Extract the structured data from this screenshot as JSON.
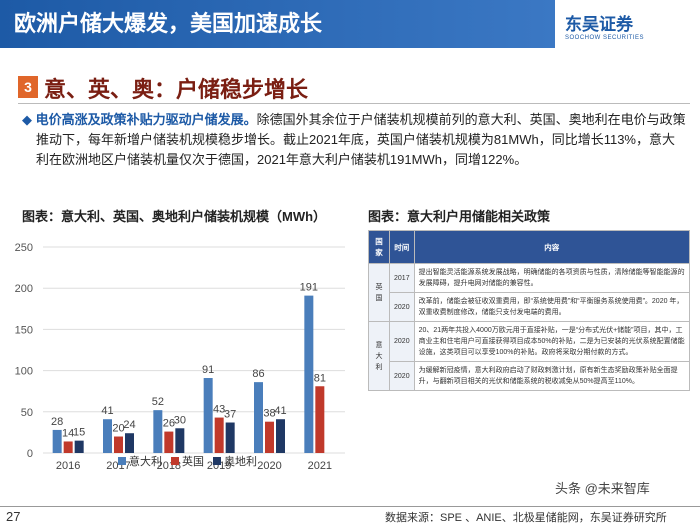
{
  "header": {
    "title": "欧洲户储大爆发，美国加速成长",
    "logo_cn": "东吴证券",
    "logo_en": "SOOCHOW SECURITIES"
  },
  "section": {
    "number": "3",
    "title": "意、英、奥：户储稳步增长"
  },
  "paragraph": {
    "bold": "电价高涨及政策补贴力驱动户储发展。",
    "text": "除德国外其余位于户储装机规模前列的意大利、英国、奥地利在电价与政策推动下，每年新增户储装机规模稳步增长。截止2021年底，英国户储装机规模为81MWh，同比增长113%，意大利在欧洲地区户储装机量仅次于德国，2021年意大利户储装机191MWh，同增122%。"
  },
  "chart_data": {
    "type": "bar",
    "title": "图表：意大利、英国、奥地利户储装机规模（MWh）",
    "categories": [
      "2016",
      "2017",
      "2018",
      "2019",
      "2020",
      "2021"
    ],
    "series": [
      {
        "name": "意大利",
        "color": "#4a7ebb",
        "values": [
          28,
          41,
          52,
          91,
          86,
          191
        ]
      },
      {
        "name": "英国",
        "color": "#c0392b",
        "values": [
          14,
          20,
          26,
          43,
          38,
          81
        ]
      },
      {
        "name": "奥地利",
        "color": "#1f3864",
        "values": [
          15,
          24,
          30,
          37,
          41,
          null
        ]
      }
    ],
    "ylim": [
      0,
      250
    ],
    "yticks": [
      0,
      50,
      100,
      150,
      200,
      250
    ],
    "grid": true,
    "legend": "bottom"
  },
  "table": {
    "title": "图表：意大利户用储能相关政策",
    "headers": [
      "国家",
      "时间",
      "内容"
    ],
    "groups": [
      {
        "country": "英国",
        "rows": [
          {
            "year": "2017",
            "content": "提出智能灵活能源系统发展战略，明确储能的各项资质与性质，清除储能等智能能源的发展障碍，提升电网对储能的兼容性。"
          },
          {
            "year": "2020",
            "content": "改革前，储能会被征收双重费用，即“系统使用费”和“平衡服务系统使用费”。2020 年，双重收费制度修改，储能只支付发电端的费用。"
          }
        ]
      },
      {
        "country": "意大利",
        "rows": [
          {
            "year": "2020",
            "content": "20、21两年共投入4000万欧元用于直接补贴，一是“分布式光伏+储能”项目，其中，工商业主和住宅用户可直接获得项目成本50%的补贴，二是为已安装的光伏系统配置储能设施，这类项目可以享受100%的补贴。政府将采取分期付款的方式。"
          },
          {
            "year": "2020",
            "content": "为缓解新冠疫情，意大利政府启动了财政刺激计划，原有新生态奖励政策补贴全面提升，与翻新项目相关的光伏和储能系统的税收减免从50%提高至110%。"
          }
        ]
      }
    ]
  },
  "footer": {
    "page": "27",
    "source": "数据来源：SPE 、ANIE、北极星储能网，东吴证券研究所",
    "watermark": "头条 @未来智库"
  }
}
